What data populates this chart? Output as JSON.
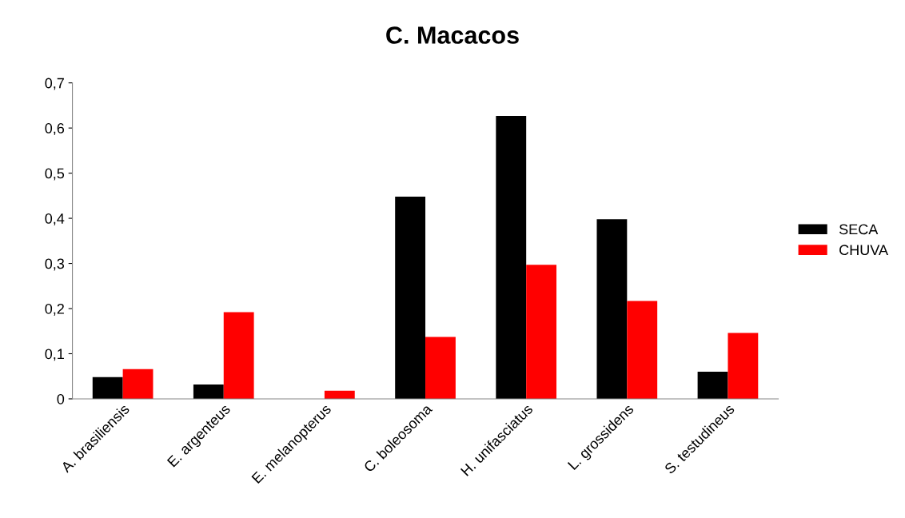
{
  "chart_data": {
    "type": "bar",
    "title": "C. Macacos",
    "categories": [
      "A. brasiliensis",
      "E. argenteus",
      "E. melanopterus",
      "C. boleosoma",
      "H. unifasciatus",
      "L. grossidens",
      "S. testudineus"
    ],
    "series": [
      {
        "name": "SECA",
        "color": "#000000",
        "values": [
          0.048,
          0.032,
          0,
          0.448,
          0.627,
          0.398,
          0.06
        ]
      },
      {
        "name": "CHUVA",
        "color": "#ff0000",
        "values": [
          0.066,
          0.192,
          0.018,
          0.137,
          0.297,
          0.217,
          0.146
        ]
      }
    ],
    "ylim": [
      0,
      0.7
    ],
    "yticks": [
      0,
      {
        "value": 0.1,
        "label": "0,1"
      },
      {
        "value": 0.2,
        "label": "0,2"
      },
      {
        "value": 0.3,
        "label": "0,3"
      },
      {
        "value": 0.4,
        "label": "0,4"
      },
      {
        "value": 0.5,
        "label": "0,5"
      },
      {
        "value": 0.6,
        "label": "0,6"
      },
      {
        "value": 0.7,
        "label": "0,7"
      }
    ],
    "grid": false,
    "legend": "right"
  }
}
